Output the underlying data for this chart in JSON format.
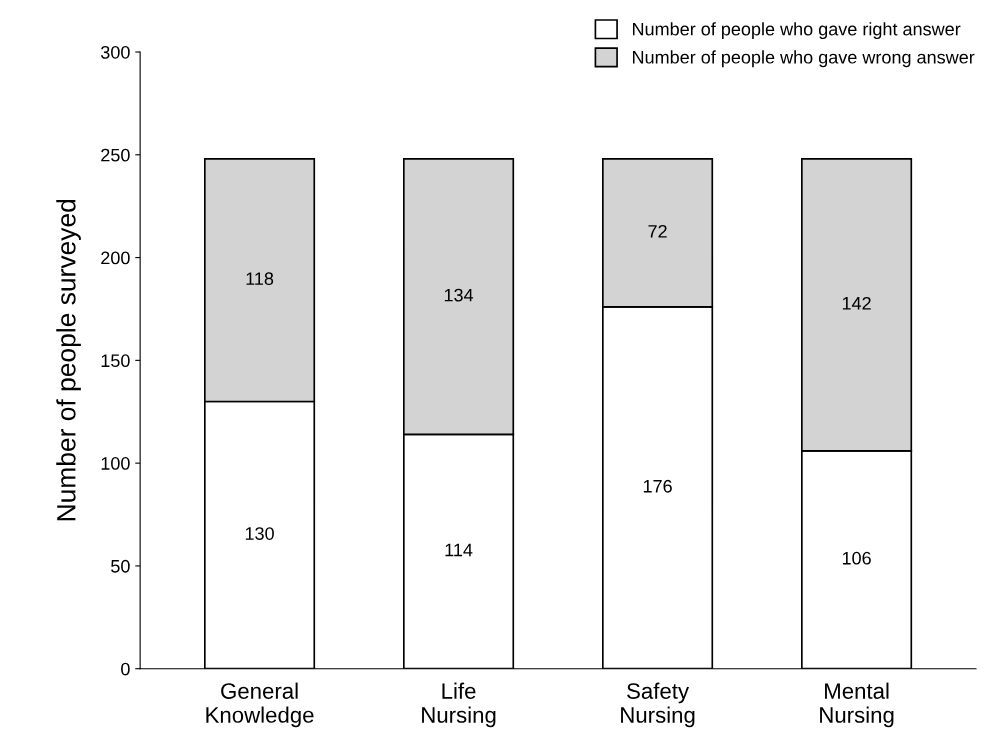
{
  "chart_data": {
    "type": "bar",
    "stacked": true,
    "ylabel": "Number of people surveyed",
    "categories": [
      "General\nKnowledge",
      "Life\nNursing",
      "Safety\nNursing",
      "Mental\nNursing"
    ],
    "series": [
      {
        "name": "Number of people who gave right answer",
        "color": "#ffffff",
        "values": [
          130,
          114,
          176,
          106
        ]
      },
      {
        "name": "Number of people who gave wrong answer",
        "color": "#d3d3d3",
        "values": [
          118,
          134,
          72,
          142
        ]
      }
    ],
    "ylim": [
      0,
      300
    ],
    "yticks": [
      0,
      50,
      100,
      150,
      200,
      250,
      300
    ],
    "data_labels": true,
    "legend": "top right",
    "grid": false
  }
}
